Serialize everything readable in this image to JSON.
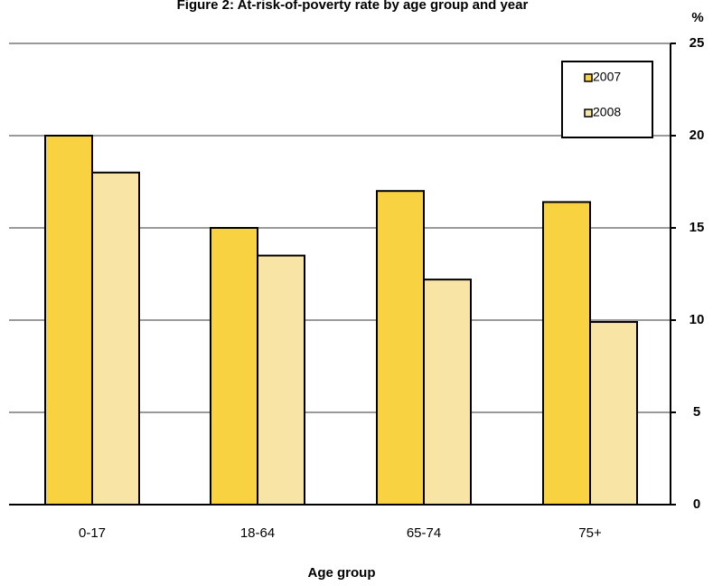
{
  "chart_data": {
    "type": "bar",
    "title": "Figure 2: At-risk-of-poverty rate by age group and year",
    "xlabel": "Age group",
    "ylabel": "%",
    "categories": [
      "0-17",
      "18-64",
      "65-74",
      "75+"
    ],
    "series": [
      {
        "name": "2007",
        "values": [
          20.0,
          15.0,
          17.0,
          16.4
        ],
        "color": "#F8D240"
      },
      {
        "name": "2008",
        "values": [
          18.0,
          13.5,
          12.2,
          9.9
        ],
        "color": "#F8E4A4"
      }
    ],
    "ylim": [
      0,
      25
    ],
    "yticks": [
      0,
      5,
      10,
      15,
      20,
      25
    ],
    "y_axis_side": "right",
    "grid": true,
    "legend": "top-right"
  }
}
